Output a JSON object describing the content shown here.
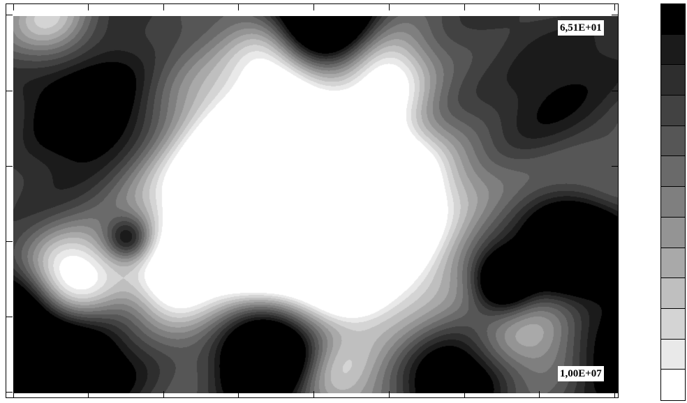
{
  "chart_data": {
    "type": "heatmap",
    "title": "",
    "xlabel": "",
    "ylabel": "",
    "max_label": "6,51E+01",
    "min_label": "1,00E+07",
    "legend_position": "right",
    "levels": 13,
    "colorbar_colors": [
      "#000000",
      "#1b1b1b",
      "#2e2e2e",
      "#424242",
      "#565656",
      "#6a6a6a",
      "#7f7f7f",
      "#949494",
      "#a9a9a9",
      "#bfbfbf",
      "#d4d4d4",
      "#e9e9e9",
      "#ffffff"
    ],
    "grid": false,
    "x_ticks": 9,
    "y_ticks": 6,
    "peaks": [
      {
        "name": "central-ridge-a",
        "x": 0.38,
        "y": 0.49,
        "v": 1.0,
        "r": 0.095
      },
      {
        "name": "central-ridge-b",
        "x": 0.5,
        "y": 0.5,
        "v": 0.9,
        "r": 0.09
      },
      {
        "name": "central-ridge-c",
        "x": 0.6,
        "y": 0.49,
        "v": 1.0,
        "r": 0.075
      },
      {
        "name": "ridge-upper",
        "x": 0.45,
        "y": 0.38,
        "v": 0.55,
        "r": 0.12
      },
      {
        "name": "ridge-lower",
        "x": 0.5,
        "y": 0.62,
        "v": 0.6,
        "r": 0.16
      },
      {
        "name": "left-blob",
        "x": 0.09,
        "y": 0.69,
        "v": 0.85,
        "r": 0.055
      },
      {
        "name": "mid-left-blob",
        "x": 0.26,
        "y": 0.7,
        "v": 0.6,
        "r": 0.045
      },
      {
        "name": "lower-mid-blob",
        "x": 0.56,
        "y": 0.7,
        "v": 0.55,
        "r": 0.035
      },
      {
        "name": "top-light",
        "x": 0.62,
        "y": 0.16,
        "v": 0.6,
        "r": 0.05
      },
      {
        "name": "top-mid-light",
        "x": 0.43,
        "y": 0.11,
        "v": 0.55,
        "r": 0.05
      },
      {
        "name": "top-left-corner",
        "x": 0.06,
        "y": 0.01,
        "v": 0.5,
        "r": 0.05
      },
      {
        "name": "right-light",
        "x": 0.93,
        "y": 0.45,
        "v": 0.35,
        "r": 0.06
      },
      {
        "name": "lower-right-light",
        "x": 0.85,
        "y": 0.85,
        "v": 0.3,
        "r": 0.06
      },
      {
        "name": "bottom-mid-light",
        "x": 0.52,
        "y": 0.95,
        "v": 0.3,
        "r": 0.05
      },
      {
        "name": "dark-spot-bottom",
        "x": 0.42,
        "y": 0.89,
        "v": -1.3,
        "r": 0.06
      },
      {
        "name": "dark-spot-right",
        "x": 0.93,
        "y": 0.6,
        "v": -1.2,
        "r": 0.055
      },
      {
        "name": "dark-spot-right-small",
        "x": 0.81,
        "y": 0.7,
        "v": -0.75,
        "r": 0.035
      },
      {
        "name": "dark-spot-top",
        "x": 0.51,
        "y": 0.0,
        "v": -1.1,
        "r": 0.06
      },
      {
        "name": "dark-left-edge",
        "x": 0.0,
        "y": 0.82,
        "v": -0.75,
        "r": 0.07
      },
      {
        "name": "dark-spot-left",
        "x": 0.19,
        "y": 0.59,
        "v": -0.5,
        "r": 0.025
      },
      {
        "name": "dark-bottom-right",
        "x": 0.72,
        "y": 0.98,
        "v": -0.6,
        "r": 0.06
      },
      {
        "name": "dark-left-column",
        "x": 0.13,
        "y": 0.25,
        "v": -0.45,
        "r": 0.09
      },
      {
        "name": "dark-upper-right",
        "x": 0.88,
        "y": 0.2,
        "v": -0.3,
        "r": 0.08
      },
      {
        "name": "dark-lower-left",
        "x": 0.1,
        "y": 0.93,
        "v": -0.5,
        "r": 0.07
      },
      {
        "name": "dark-bottom-right-corner",
        "x": 0.99,
        "y": 0.9,
        "v": -0.4,
        "r": 0.05
      }
    ],
    "base_level": 0.3
  }
}
